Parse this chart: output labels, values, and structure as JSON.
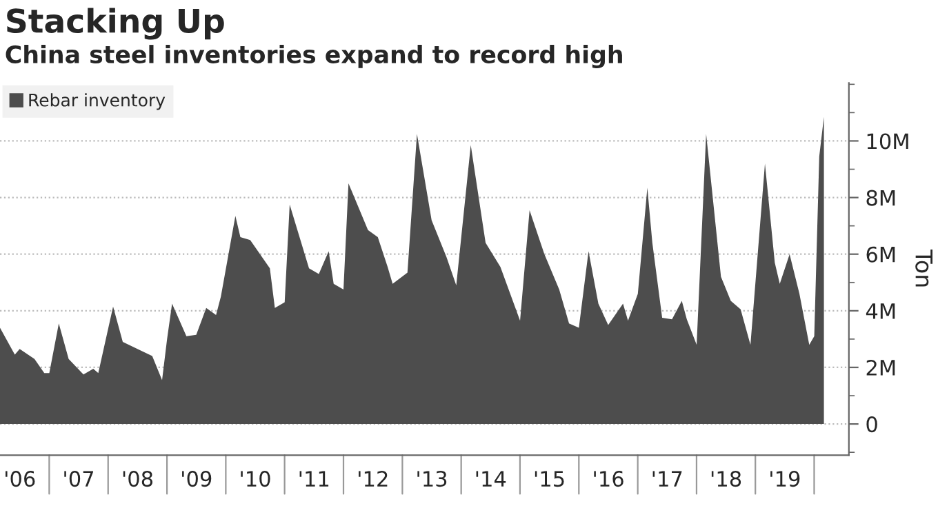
{
  "chart_data": {
    "type": "area",
    "title": "Stacking Up",
    "subtitle": "China steel inventories expand to record high",
    "ylabel": "Ton",
    "x": [
      "2006-03",
      "2006-06",
      "2006-07",
      "2006-10",
      "2006-12",
      "2007-01",
      "2007-03",
      "2007-05",
      "2007-08",
      "2007-10",
      "2007-11",
      "2008-02",
      "2008-04",
      "2008-10",
      "2008-12",
      "2009-01",
      "2009-02",
      "2009-05",
      "2009-07",
      "2009-09",
      "2009-11",
      "2009-12",
      "2010-03",
      "2010-04",
      "2010-06",
      "2010-10",
      "2010-11",
      "2011-01",
      "2011-02",
      "2011-06",
      "2011-08",
      "2011-10",
      "2011-11",
      "2012-01",
      "2012-02",
      "2012-06",
      "2012-08",
      "2012-10",
      "2012-11",
      "2013-02",
      "2013-04",
      "2013-07",
      "2013-10",
      "2013-12",
      "2014-03",
      "2014-06",
      "2014-09",
      "2015-01",
      "2015-03",
      "2015-06",
      "2015-09",
      "2015-11",
      "2016-01",
      "2016-03",
      "2016-05",
      "2016-07",
      "2016-10",
      "2016-11",
      "2017-01",
      "2017-03",
      "2017-04",
      "2017-06",
      "2017-08",
      "2017-10",
      "2017-11",
      "2018-01",
      "2018-03",
      "2018-06",
      "2018-08",
      "2018-10",
      "2018-12",
      "2019-03",
      "2019-05",
      "2019-06",
      "2019-08",
      "2019-10",
      "2019-12",
      "2020-01",
      "2020-02",
      "2020-03"
    ],
    "series": [
      {
        "name": "Rebar inventory",
        "color": "#4d4d4d",
        "values": [
          3400000,
          2450000,
          2650000,
          2300000,
          1800000,
          1800000,
          3550000,
          2300000,
          1750000,
          1950000,
          1800000,
          4150000,
          2900000,
          2400000,
          1550000,
          3000000,
          4250000,
          3100000,
          3150000,
          4100000,
          3850000,
          4500000,
          7350000,
          6600000,
          6500000,
          5500000,
          4100000,
          4300000,
          7750000,
          5500000,
          5300000,
          6100000,
          4950000,
          4750000,
          8500000,
          6850000,
          6600000,
          5550000,
          4950000,
          5350000,
          10250000,
          7200000,
          5900000,
          4900000,
          9850000,
          6400000,
          5550000,
          3650000,
          7550000,
          6000000,
          4750000,
          3550000,
          3400000,
          6100000,
          4250000,
          3500000,
          4250000,
          3650000,
          4600000,
          8350000,
          6400000,
          3750000,
          3700000,
          4350000,
          3700000,
          2800000,
          10250000,
          5200000,
          4350000,
          4050000,
          2800000,
          9200000,
          5700000,
          4950000,
          6000000,
          4600000,
          2800000,
          3100000,
          9450000,
          10850000
        ]
      }
    ],
    "xlim": [
      "2006-03-01",
      "2020-08-03"
    ],
    "xticks": [
      {
        "value": "2006-07-02",
        "label": "'06"
      },
      {
        "value": "2007-07-02",
        "label": "'07"
      },
      {
        "value": "2008-07-02",
        "label": "'08"
      },
      {
        "value": "2009-07-02",
        "label": "'09"
      },
      {
        "value": "2010-07-02",
        "label": "'10"
      },
      {
        "value": "2011-07-02",
        "label": "'11"
      },
      {
        "value": "2012-07-02",
        "label": "'12"
      },
      {
        "value": "2013-07-02",
        "label": "'13"
      },
      {
        "value": "2014-07-02",
        "label": "'14"
      },
      {
        "value": "2015-07-02",
        "label": "'15"
      },
      {
        "value": "2016-07-02",
        "label": "'16"
      },
      {
        "value": "2017-07-02",
        "label": "'17"
      },
      {
        "value": "2018-07-02",
        "label": "'18"
      },
      {
        "value": "2019-07-02",
        "label": "'19"
      }
    ],
    "ylim": [
      -1100000,
      12050000
    ],
    "yticks": [
      {
        "value": 0,
        "label": "0"
      },
      {
        "value": 2000000,
        "label": "2M"
      },
      {
        "value": 4000000,
        "label": "4M"
      },
      {
        "value": 6000000,
        "label": "6M"
      },
      {
        "value": 8000000,
        "label": "8M"
      },
      {
        "value": 10000000,
        "label": "10M"
      },
      {
        "value": -1000000,
        "label": null
      },
      {
        "value": 1000000,
        "label": null
      },
      {
        "value": 3000000,
        "label": null
      },
      {
        "value": 5000000,
        "label": null
      },
      {
        "value": 7000000,
        "label": null
      },
      {
        "value": 9000000,
        "label": null
      },
      {
        "value": 11000000,
        "label": null
      },
      {
        "value": 12000000,
        "label": null
      }
    ],
    "grid": "y",
    "legend": "top left"
  }
}
